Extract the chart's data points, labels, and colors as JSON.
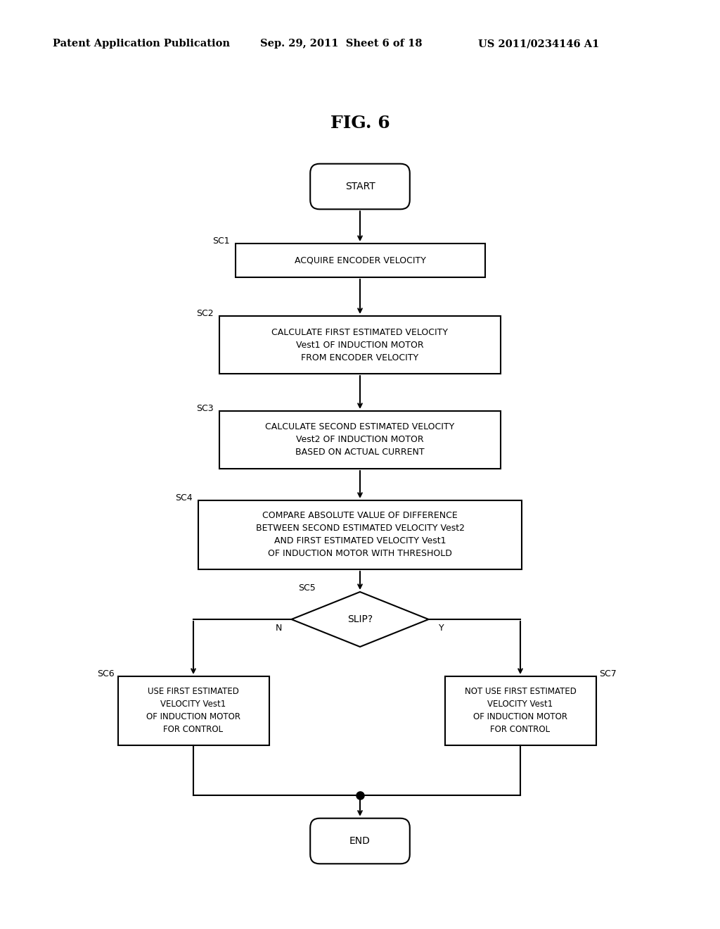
{
  "title": "FIG. 6",
  "header_left": "Patent Application Publication",
  "header_mid": "Sep. 29, 2011  Sheet 6 of 18",
  "header_right": "US 2011/0234146 A1",
  "bg_color": "#ffffff",
  "text_color": "#000000",
  "start_label": "START",
  "end_label": "END",
  "sc1_label": "ACQUIRE ENCODER VELOCITY",
  "sc1_step": "SC1",
  "sc2_label": "CALCULATE FIRST ESTIMATED VELOCITY\nVest1 OF INDUCTION MOTOR\nFROM ENCODER VELOCITY",
  "sc2_step": "SC2",
  "sc3_label": "CALCULATE SECOND ESTIMATED VELOCITY\nVest2 OF INDUCTION MOTOR\nBASED ON ACTUAL CURRENT",
  "sc3_step": "SC3",
  "sc4_label": "COMPARE ABSOLUTE VALUE OF DIFFERENCE\nBETWEEN SECOND ESTIMATED VELOCITY Vest2\nAND FIRST ESTIMATED VELOCITY Vest1\nOF INDUCTION MOTOR WITH THRESHOLD",
  "sc4_step": "SC4",
  "sc5_label": "SLIP?",
  "sc5_step": "SC5",
  "sc6_label": "USE FIRST ESTIMATED\nVELOCITY Vest1\nOF INDUCTION MOTOR\nFOR CONTROL",
  "sc6_step": "SC6",
  "sc7_label": "NOT USE FIRST ESTIMATED\nVELOCITY Vest1\nOF INDUCTION MOTOR\nFOR CONTROL",
  "sc7_step": "SC7",
  "n_label": "N",
  "y_label": "Y"
}
